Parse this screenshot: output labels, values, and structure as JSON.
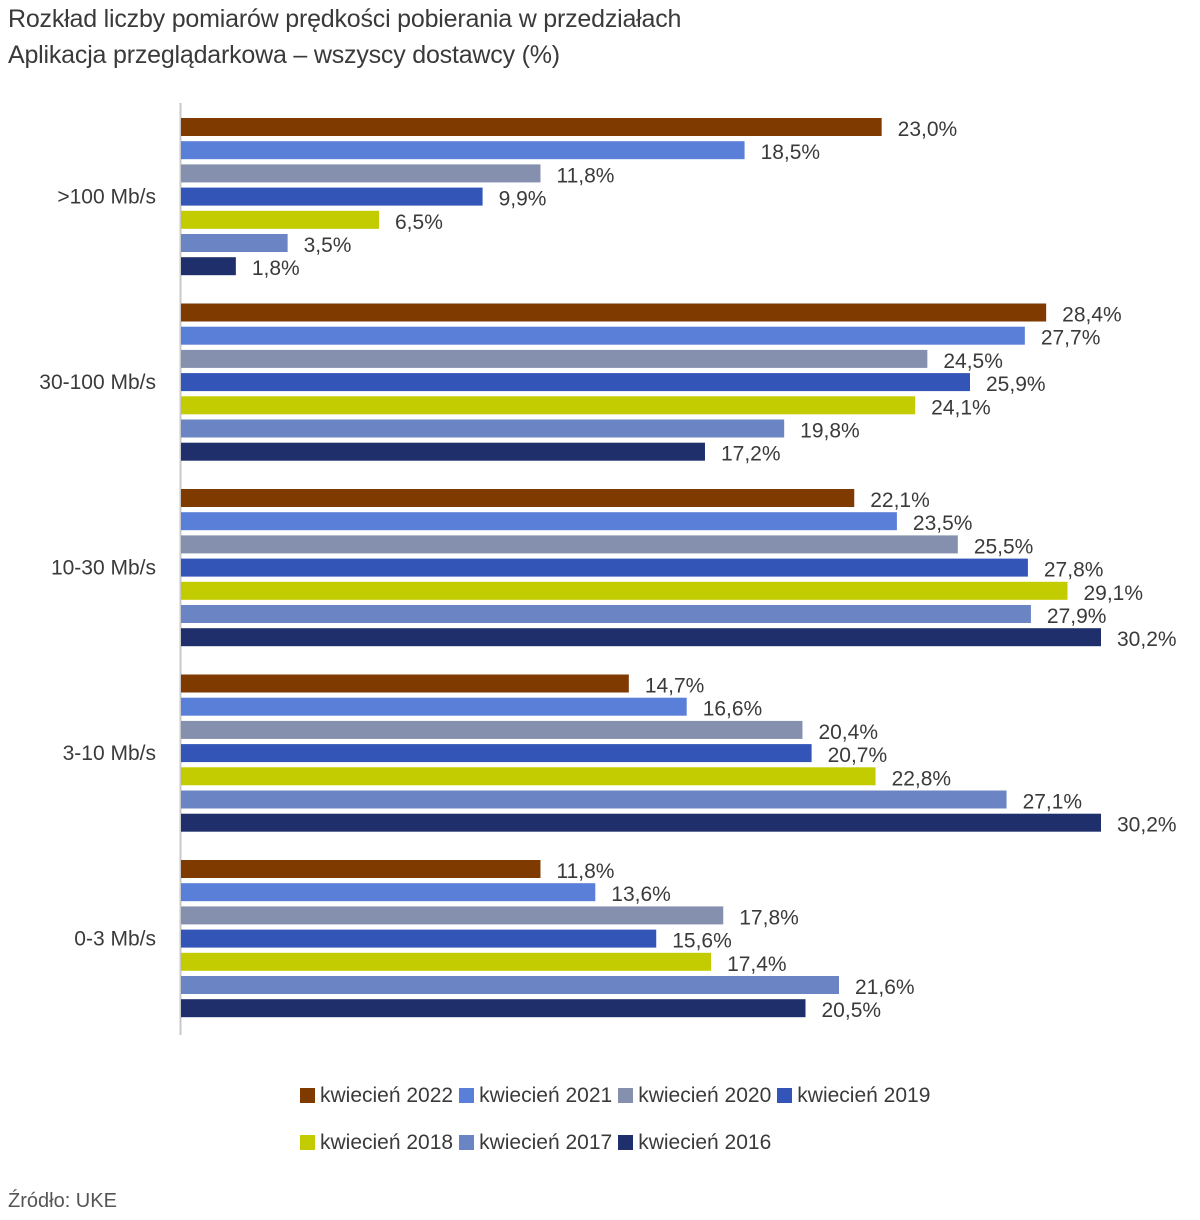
{
  "title_line1": "Rozkład liczby pomiarów prędkości pobierania w przedziałach",
  "title_line2": "Aplikacja przeglądarkowa – wszyscy dostawcy (%)",
  "source": "Źródło: UKE",
  "chart_data": {
    "type": "bar",
    "orientation": "horizontal",
    "title": "Rozkład liczby pomiarów prędkości pobierania w przedziałach",
    "subtitle": "Aplikacja przeglądarkowa – wszyscy dostawcy (%)",
    "xlabel": "",
    "ylabel": "",
    "xlim": [
      0,
      30.2
    ],
    "grid": false,
    "legend_position": "bottom",
    "categories": [
      ">100 Mb/s",
      "30-100 Mb/s",
      "10-30 Mb/s",
      "3-10 Mb/s",
      "0-3 Mb/s"
    ],
    "series": [
      {
        "name": "kwiecień 2022",
        "color": "#7F3A00",
        "values": [
          23.0,
          28.4,
          22.1,
          14.7,
          11.8
        ],
        "labels": [
          "23,0%",
          "28,4%",
          "22,1%",
          "14,7%",
          "11,8%"
        ]
      },
      {
        "name": "kwiecień 2021",
        "color": "#5A7FD8",
        "values": [
          18.5,
          27.7,
          23.5,
          16.6,
          13.6
        ],
        "labels": [
          "18,5%",
          "27,7%",
          "23,5%",
          "16,6%",
          "13,6%"
        ]
      },
      {
        "name": "kwiecień 2020",
        "color": "#8490AE",
        "values": [
          11.8,
          24.5,
          25.5,
          20.4,
          17.8
        ],
        "labels": [
          "11,8%",
          "24,5%",
          "25,5%",
          "20,4%",
          "17,8%"
        ]
      },
      {
        "name": "kwiecień 2019",
        "color": "#3355B8",
        "values": [
          9.9,
          25.9,
          27.8,
          20.7,
          15.6
        ],
        "labels": [
          "9,9%",
          "25,9%",
          "27,8%",
          "20,7%",
          "15,6%"
        ]
      },
      {
        "name": "kwiecień 2018",
        "color": "#C3CC00",
        "values": [
          6.5,
          24.1,
          29.1,
          22.8,
          17.4
        ],
        "labels": [
          "6,5%",
          "24,1%",
          "29,1%",
          "22,8%",
          "17,4%"
        ]
      },
      {
        "name": "kwiecień 2017",
        "color": "#6B85C4",
        "values": [
          3.5,
          19.8,
          27.9,
          27.1,
          21.6
        ],
        "labels": [
          "3,5%",
          "19,8%",
          "27,9%",
          "27,1%",
          "21,6%"
        ]
      },
      {
        "name": "kwiecień 2016",
        "color": "#1F2F6B",
        "values": [
          1.8,
          17.2,
          30.2,
          30.2,
          20.5
        ],
        "labels": [
          "1,8%",
          "17,2%",
          "30,2%",
          "30,2%",
          "20,5%"
        ]
      }
    ]
  }
}
